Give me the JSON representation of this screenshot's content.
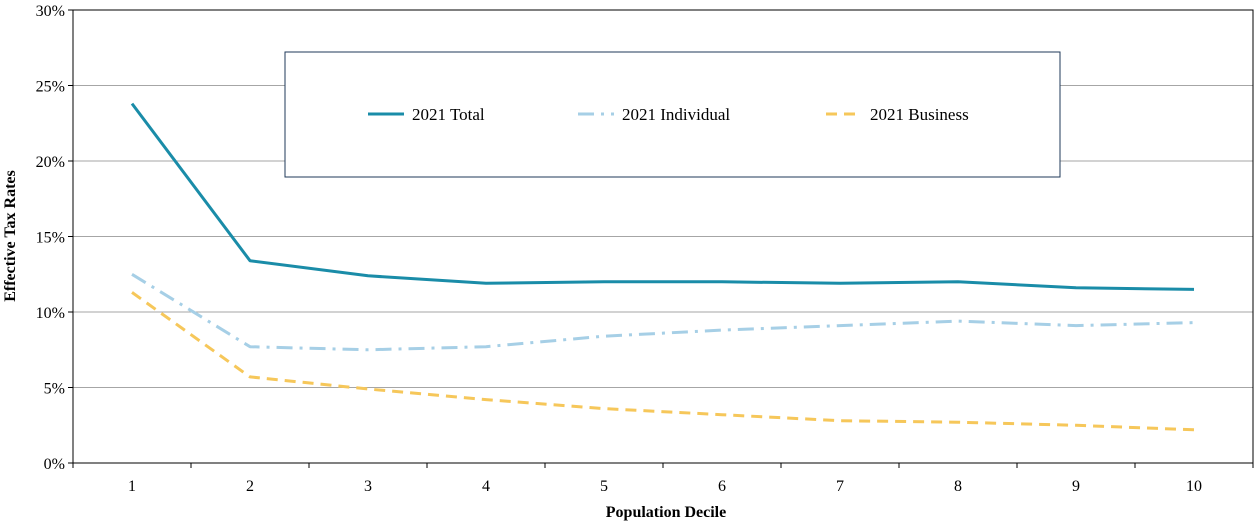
{
  "chart_data": {
    "type": "line",
    "x": [
      1,
      2,
      3,
      4,
      5,
      6,
      7,
      8,
      9,
      10
    ],
    "xlabel": "Population Decile",
    "ylabel": "Effective Tax Rates",
    "ylim": [
      0,
      30
    ],
    "y_ticks": [
      "0%",
      "5%",
      "10%",
      "15%",
      "20%",
      "25%",
      "30%"
    ],
    "x_ticks": [
      "1",
      "2",
      "3",
      "4",
      "5",
      "6",
      "7",
      "8",
      "9",
      "10"
    ],
    "grid": "horizontal",
    "legend_position": "top-center",
    "series": [
      {
        "name": "2021 Total",
        "color": "#1a8ca8",
        "style": "solid",
        "values": [
          23.8,
          13.4,
          12.4,
          11.9,
          12.0,
          12.0,
          11.9,
          12.0,
          11.6,
          11.5
        ]
      },
      {
        "name": "2021 Individual",
        "color": "#a6cfe6",
        "style": "dashdot",
        "values": [
          12.5,
          7.7,
          7.5,
          7.7,
          8.4,
          8.8,
          9.1,
          9.4,
          9.1,
          9.3
        ]
      },
      {
        "name": "2021 Business",
        "color": "#f6c75a",
        "style": "dashed",
        "values": [
          11.3,
          5.7,
          4.9,
          4.2,
          3.6,
          3.2,
          2.8,
          2.7,
          2.5,
          2.2
        ]
      }
    ]
  }
}
